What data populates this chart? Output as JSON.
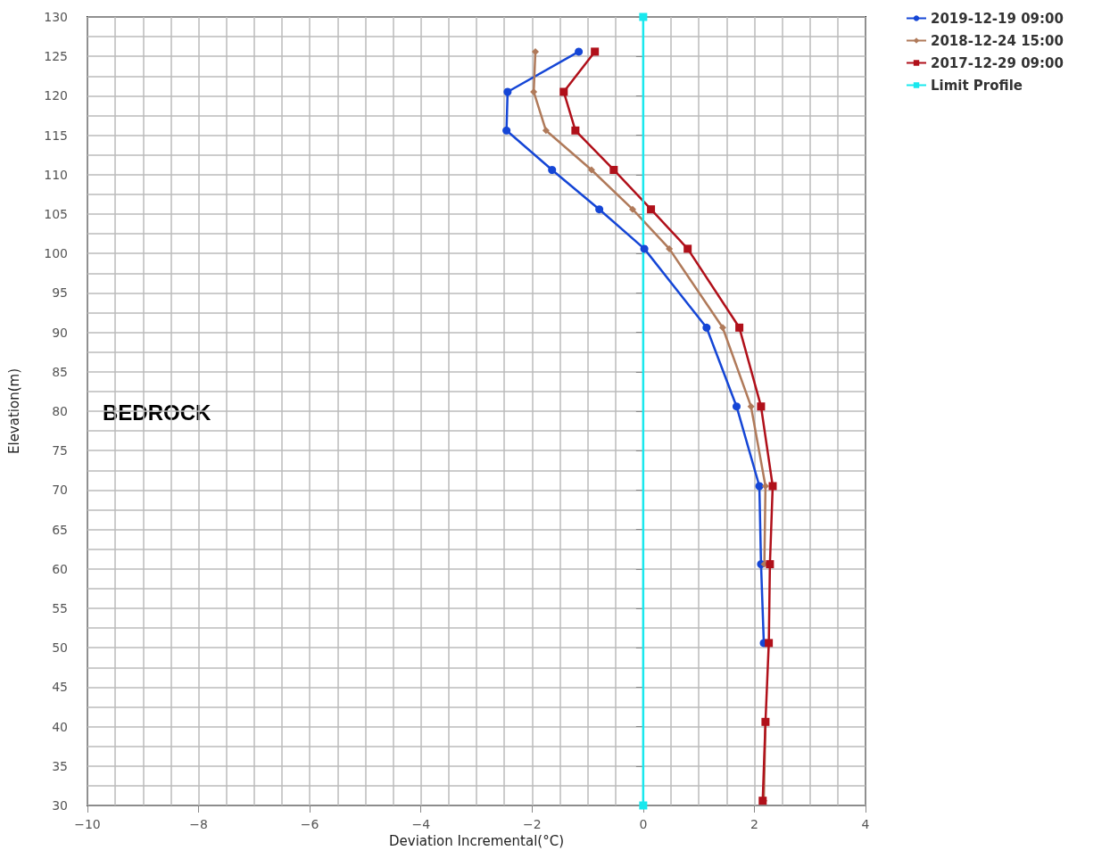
{
  "chart_data": {
    "type": "line",
    "xlabel": "Deviation Incremental(°C)",
    "ylabel": "Elevation(m)",
    "xlim": [
      -10,
      4
    ],
    "xticks": [
      -10,
      -8,
      -6,
      -4,
      -2,
      0,
      2,
      4
    ],
    "ylim": [
      30,
      130
    ],
    "yticks": [
      30,
      35,
      40,
      45,
      50,
      55,
      60,
      65,
      70,
      75,
      80,
      85,
      90,
      95,
      100,
      105,
      110,
      115,
      120,
      125,
      130
    ],
    "grid": true,
    "legend": "top right",
    "annotations": [
      "BEDROCK"
    ],
    "series": [
      {
        "name": "2019-12-19 09:00",
        "color": "#1546d6",
        "marker": "circle",
        "x": [
          -1.16,
          -2.44,
          -2.46,
          -1.64,
          -0.79,
          0.02,
          1.14,
          1.68,
          2.09,
          2.12,
          2.17,
          null,
          null
        ],
        "values": [
          125.6,
          120.5,
          115.6,
          110.6,
          105.6,
          100.6,
          90.6,
          80.6,
          70.5,
          60.6,
          50.6,
          null,
          null
        ]
      },
      {
        "name": "2018-12-24 15:00",
        "color": "#b07a5a",
        "marker": "diamond",
        "x": [
          -1.94,
          -1.97,
          -1.75,
          -0.93,
          -0.19,
          0.47,
          1.43,
          1.94,
          2.2,
          2.18,
          null,
          2.2,
          2.17
        ],
        "values": [
          125.6,
          120.5,
          115.6,
          110.6,
          105.6,
          100.6,
          90.6,
          80.6,
          70.5,
          60.6,
          null,
          40.6,
          30.6
        ]
      },
      {
        "name": "2017-12-29 09:00",
        "color": "#b0101a",
        "marker": "square",
        "x": [
          -0.87,
          -1.43,
          -1.22,
          -0.53,
          0.14,
          0.8,
          1.73,
          2.12,
          2.33,
          2.28,
          2.26,
          2.2,
          2.15
        ],
        "values": [
          125.6,
          120.5,
          115.6,
          110.6,
          105.6,
          100.6,
          90.6,
          80.6,
          70.5,
          60.6,
          50.6,
          40.6,
          30.6
        ]
      },
      {
        "name": "Limit Profile",
        "color": "#19e8ee",
        "marker": "square",
        "x": [
          0,
          0
        ],
        "values": [
          30,
          130
        ]
      }
    ]
  }
}
